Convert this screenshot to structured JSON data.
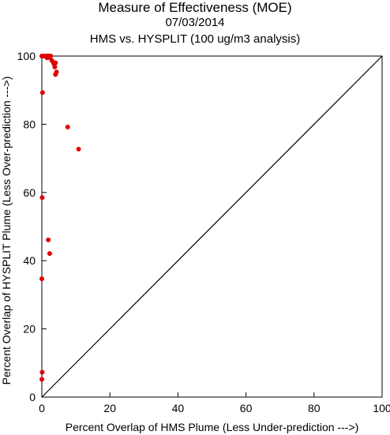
{
  "chart_data": {
    "type": "scatter",
    "title": "Measure of Effectiveness (MOE)",
    "subtitle": "07/03/2014",
    "subtitle2": "HMS vs. HYSPLIT  (100 ug/m3 analysis)",
    "xlabel": "Percent Overlap of HMS Plume (Less Under-prediction --->)",
    "ylabel": "Percent Overlap of HYSPLIT Plume (Less Over-prediction --->)",
    "xlim": [
      0,
      100
    ],
    "ylim": [
      0,
      100
    ],
    "xticks": [
      "0",
      "20",
      "40",
      "60",
      "80",
      "100"
    ],
    "yticks": [
      "0",
      "20",
      "40",
      "60",
      "80",
      "100"
    ],
    "reference_line": "y = x",
    "marker_color": "#e00000",
    "line_color": "#000000",
    "grid": false,
    "points": [
      {
        "x": 0.0,
        "y": 100.0
      },
      {
        "x": 0.3,
        "y": 100.0
      },
      {
        "x": 0.6,
        "y": 100.0
      },
      {
        "x": 1.0,
        "y": 100.0
      },
      {
        "x": 1.4,
        "y": 100.0
      },
      {
        "x": 1.8,
        "y": 100.0
      },
      {
        "x": 2.2,
        "y": 100.0
      },
      {
        "x": 2.6,
        "y": 100.0
      },
      {
        "x": 1.5,
        "y": 99.5
      },
      {
        "x": 2.0,
        "y": 99.6
      },
      {
        "x": 2.4,
        "y": 99.5
      },
      {
        "x": 3.0,
        "y": 98.6
      },
      {
        "x": 3.5,
        "y": 97.8
      },
      {
        "x": 4.0,
        "y": 98.0
      },
      {
        "x": 3.8,
        "y": 96.8
      },
      {
        "x": 4.3,
        "y": 95.3
      },
      {
        "x": 4.0,
        "y": 94.6
      },
      {
        "x": 0.2,
        "y": 89.3
      },
      {
        "x": 7.6,
        "y": 79.2
      },
      {
        "x": 10.8,
        "y": 72.7
      },
      {
        "x": 0.1,
        "y": 58.5
      },
      {
        "x": 1.9,
        "y": 46.1
      },
      {
        "x": 2.3,
        "y": 42.1
      },
      {
        "x": 0.0,
        "y": 34.7
      },
      {
        "x": 0.1,
        "y": 7.3
      },
      {
        "x": 0.0,
        "y": 5.2
      }
    ]
  }
}
